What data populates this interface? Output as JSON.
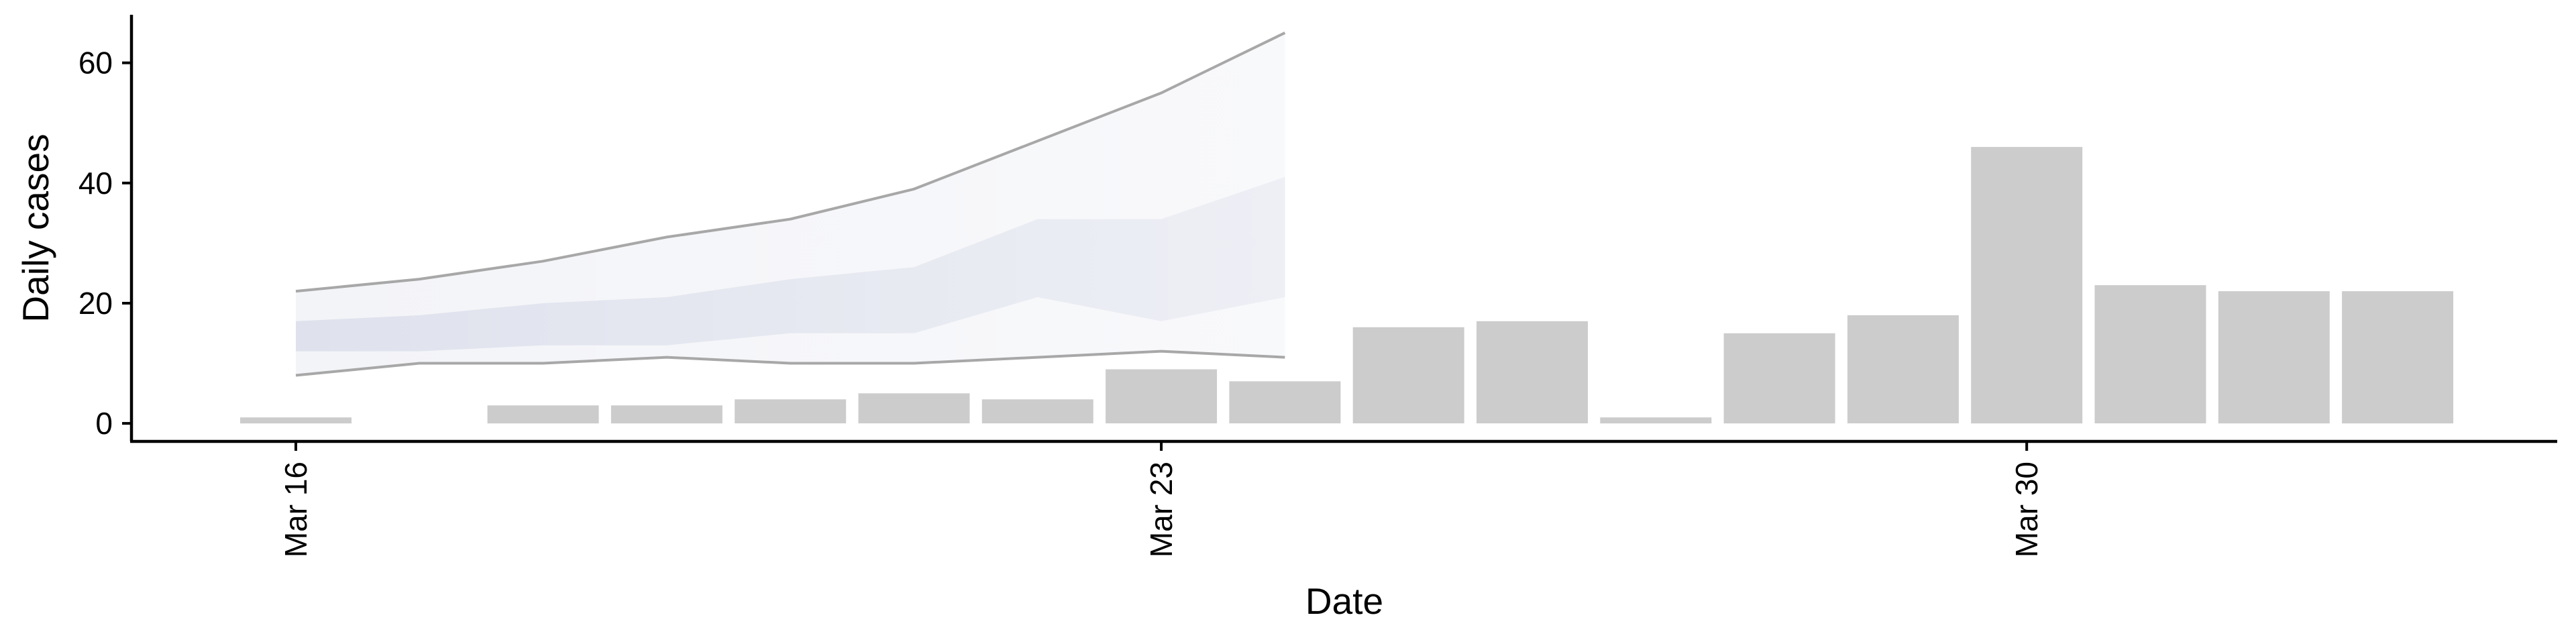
{
  "chart_data": {
    "type": "bar",
    "xlabel": "Date",
    "ylabel": "Daily cases",
    "ylim": [
      -3,
      68
    ],
    "y_ticks": [
      0,
      20,
      40,
      60
    ],
    "x_ticks": [
      {
        "day": 0,
        "label": "Mar 16"
      },
      {
        "day": 7,
        "label": "Mar 23"
      },
      {
        "day": 14,
        "label": "Mar 30"
      }
    ],
    "bars": {
      "color": "#cccccc",
      "x": [
        "Mar 16",
        "Mar 17",
        "Mar 18",
        "Mar 19",
        "Mar 20",
        "Mar 21",
        "Mar 22",
        "Mar 23",
        "Mar 24",
        "Mar 25",
        "Mar 26",
        "Mar 27",
        "Mar 28",
        "Mar 29",
        "Mar 30",
        "Mar 31",
        "Apr 1",
        "Apr 2"
      ],
      "values": [
        1,
        0,
        3,
        3,
        4,
        5,
        4,
        9,
        7,
        16,
        17,
        1,
        15,
        18,
        46,
        23,
        22,
        22
      ]
    },
    "forecast": {
      "x": [
        "Mar 16",
        "Mar 17",
        "Mar 18",
        "Mar 19",
        "Mar 20",
        "Mar 21",
        "Mar 22",
        "Mar 23",
        "Mar 24"
      ],
      "outer_upper": [
        22,
        24,
        27,
        31,
        34,
        39,
        47,
        55,
        65
      ],
      "outer_lower": [
        8,
        10,
        10,
        11,
        10,
        10,
        11,
        12,
        11
      ],
      "inner_upper": [
        17,
        18,
        20,
        21,
        24,
        26,
        34,
        34,
        41
      ],
      "inner_lower": [
        12,
        12,
        13,
        13,
        15,
        15,
        21,
        17,
        21
      ],
      "outer_color": "#dde0ec",
      "inner_color": "#c8cde0",
      "line_color": "#999999"
    }
  }
}
